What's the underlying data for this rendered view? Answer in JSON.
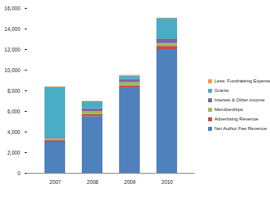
{
  "chart_data": {
    "type": "bar",
    "stacked": true,
    "legend": "right",
    "categories": [
      "2007",
      "2008",
      "2009",
      "2010"
    ],
    "ylim": [
      0,
      16000
    ],
    "yticks": [
      0,
      2000,
      4000,
      6000,
      8000,
      10000,
      12000,
      14000,
      16000
    ],
    "series": [
      {
        "name": "Net Author Fee Revenue",
        "color": "#4f81bd",
        "values": [
          3000,
          5500,
          8300,
          12000
        ]
      },
      {
        "name": "Advertising Revenue",
        "color": "#c0504d",
        "values": [
          200,
          200,
          200,
          300
        ]
      },
      {
        "name": "Memberships",
        "color": "#9bbb59",
        "values": [
          150,
          300,
          300,
          300
        ]
      },
      {
        "name": "Interest & Other income",
        "color": "#8064a2",
        "values": [
          100,
          250,
          300,
          400
        ]
      },
      {
        "name": "Grants",
        "color": "#4bacc6",
        "values": [
          4900,
          700,
          300,
          2000
        ]
      },
      {
        "name": "Less: Fundraising Expense",
        "color": "#f79646",
        "values": [
          50,
          50,
          100,
          50
        ]
      }
    ]
  }
}
